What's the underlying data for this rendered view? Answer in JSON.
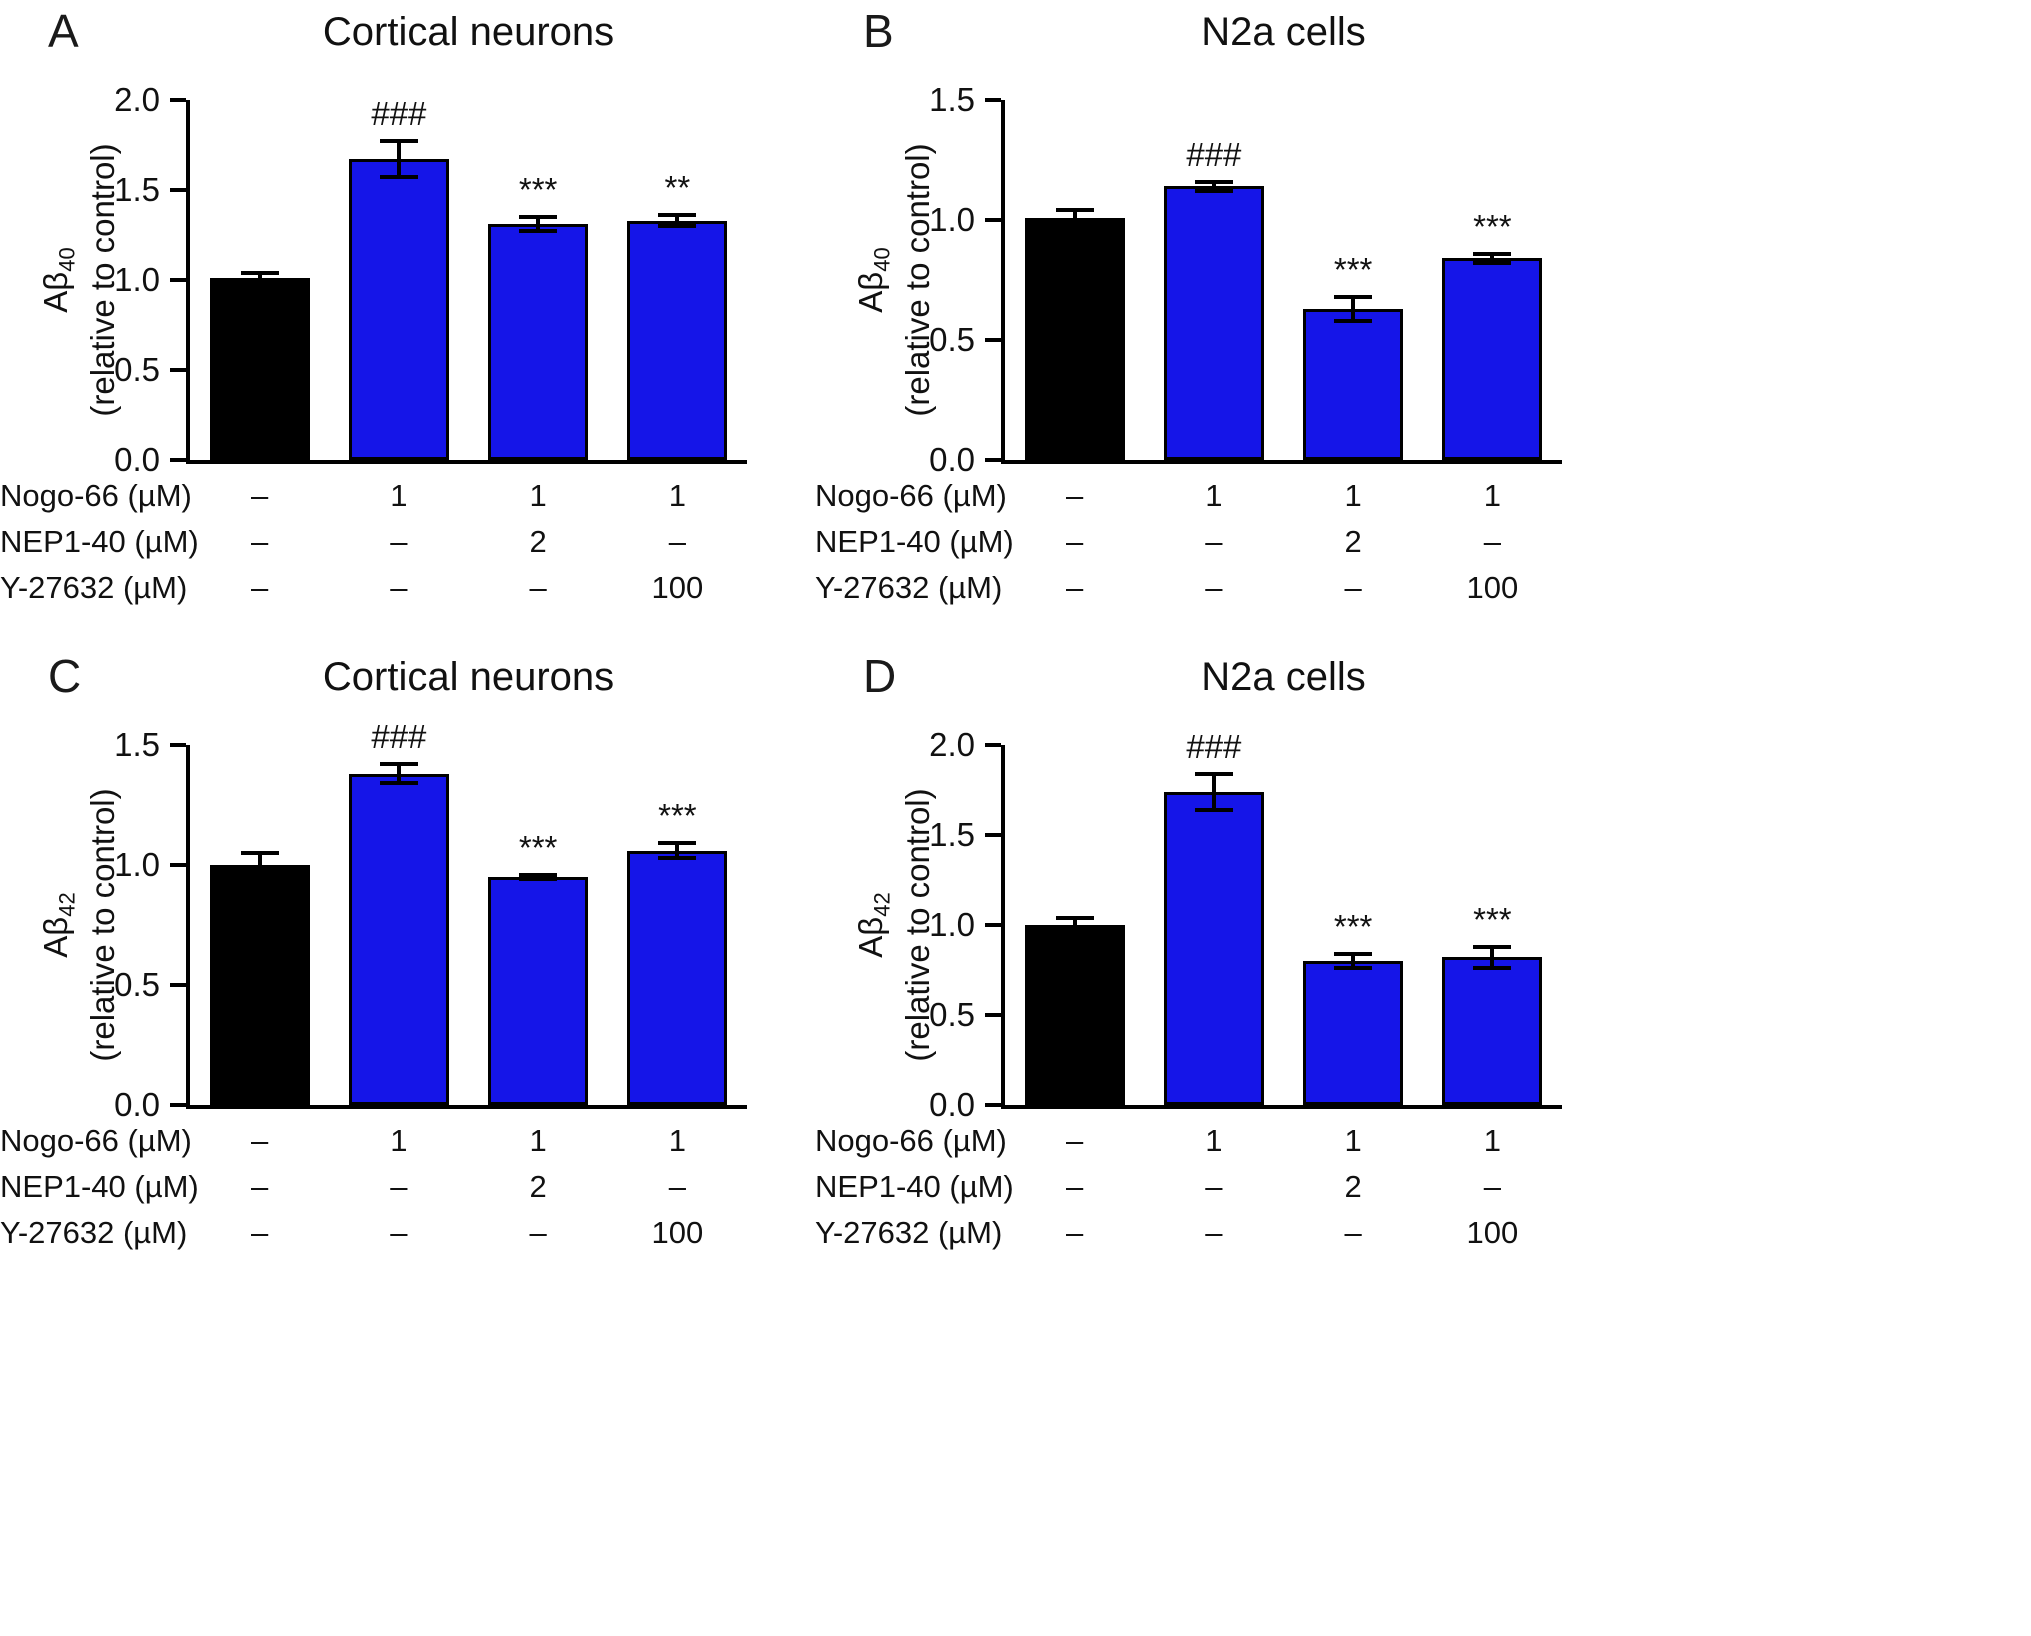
{
  "page": {
    "background": "#ffffff"
  },
  "colors": {
    "control_bar": "#000000",
    "treatment_bar": "#1515e8",
    "axis": "#000000",
    "text": "#111111"
  },
  "chart_data": [
    {
      "panel": "A",
      "type": "bar",
      "title": "Cortical neurons",
      "ylabel": {
        "line1": "Aβ",
        "sub": "40",
        "line2": "(relative to control)"
      },
      "ylim": [
        0,
        2.0
      ],
      "yticks": [
        "0.0",
        "0.5",
        "1.0",
        "1.5",
        "2.0"
      ],
      "values": [
        1.01,
        1.67,
        1.31,
        1.33
      ],
      "errors": [
        0.03,
        0.1,
        0.04,
        0.03
      ],
      "annotations": [
        "",
        "###",
        "***",
        "**"
      ],
      "bar_roles": [
        "control",
        "treatment",
        "treatment",
        "treatment"
      ],
      "condition_rows": [
        {
          "label": "Nogo-66 (µM)",
          "values": [
            "–",
            "1",
            "1",
            "1"
          ]
        },
        {
          "label": "NEP1-40 (µM)",
          "values": [
            "–",
            "–",
            "2",
            "–"
          ]
        },
        {
          "label": "Y-27632 (µM)",
          "values": [
            "–",
            "–",
            "–",
            "100"
          ]
        }
      ]
    },
    {
      "panel": "B",
      "type": "bar",
      "title": "N2a cells",
      "ylabel": {
        "line1": "Aβ",
        "sub": "40",
        "line2": "(relative to control)"
      },
      "ylim": [
        0,
        1.5
      ],
      "yticks": [
        "0.0",
        "0.5",
        "1.0",
        "1.5"
      ],
      "values": [
        1.01,
        1.14,
        0.63,
        0.84
      ],
      "errors": [
        0.03,
        0.02,
        0.05,
        0.02
      ],
      "annotations": [
        "",
        "###",
        "***",
        "***"
      ],
      "bar_roles": [
        "control",
        "treatment",
        "treatment",
        "treatment"
      ],
      "condition_rows": [
        {
          "label": "Nogo-66 (µM)",
          "values": [
            "–",
            "1",
            "1",
            "1"
          ]
        },
        {
          "label": "NEP1-40 (µM)",
          "values": [
            "–",
            "–",
            "2",
            "–"
          ]
        },
        {
          "label": "Y-27632 (µM)",
          "values": [
            "–",
            "–",
            "–",
            "100"
          ]
        }
      ]
    },
    {
      "panel": "C",
      "type": "bar",
      "title": "Cortical neurons",
      "ylabel": {
        "line1": "Aβ",
        "sub": "42",
        "line2": "(relative to control)"
      },
      "ylim": [
        0,
        1.5
      ],
      "yticks": [
        "0.0",
        "0.5",
        "1.0",
        "1.5"
      ],
      "values": [
        1.0,
        1.38,
        0.95,
        1.06
      ],
      "errors": [
        0.05,
        0.04,
        0.01,
        0.03
      ],
      "annotations": [
        "",
        "###",
        "***",
        "***"
      ],
      "bar_roles": [
        "control",
        "treatment",
        "treatment",
        "treatment"
      ],
      "condition_rows": [
        {
          "label": "Nogo-66 (µM)",
          "values": [
            "–",
            "1",
            "1",
            "1"
          ]
        },
        {
          "label": "NEP1-40 (µM)",
          "values": [
            "–",
            "–",
            "2",
            "–"
          ]
        },
        {
          "label": "Y-27632 (µM)",
          "values": [
            "–",
            "–",
            "–",
            "100"
          ]
        }
      ]
    },
    {
      "panel": "D",
      "type": "bar",
      "title": "N2a cells",
      "ylabel": {
        "line1": "Aβ",
        "sub": "42",
        "line2": "(relative to control)"
      },
      "ylim": [
        0,
        2.0
      ],
      "yticks": [
        "0.0",
        "0.5",
        "1.0",
        "1.5",
        "2.0"
      ],
      "values": [
        1.0,
        1.74,
        0.8,
        0.82
      ],
      "errors": [
        0.04,
        0.1,
        0.04,
        0.06
      ],
      "annotations": [
        "",
        "###",
        "***",
        "***"
      ],
      "bar_roles": [
        "control",
        "treatment",
        "treatment",
        "treatment"
      ],
      "condition_rows": [
        {
          "label": "Nogo-66 (µM)",
          "values": [
            "–",
            "1",
            "1",
            "1"
          ]
        },
        {
          "label": "NEP1-40 (µM)",
          "values": [
            "–",
            "–",
            "2",
            "–"
          ]
        },
        {
          "label": "Y-27632 (µM)",
          "values": [
            "–",
            "–",
            "–",
            "100"
          ]
        }
      ]
    }
  ]
}
